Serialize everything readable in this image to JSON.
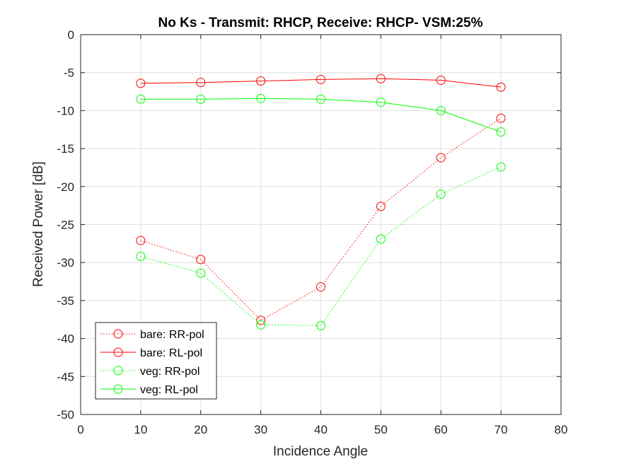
{
  "chart_data": {
    "type": "line",
    "title": "No Ks - Transmit: RHCP, Receive: RHCP- VSM:25%",
    "xlabel": "Incidence Angle",
    "ylabel": "Received Power [dB]",
    "xlim": [
      0,
      80
    ],
    "ylim": [
      -50,
      0
    ],
    "xticks": [
      0,
      10,
      20,
      30,
      40,
      50,
      60,
      70,
      80
    ],
    "yticks": [
      0,
      -5,
      -10,
      -15,
      -20,
      -25,
      -30,
      -35,
      -40,
      -45,
      -50
    ],
    "grid": true,
    "legend_position": "bottom-left",
    "x": [
      10,
      20,
      30,
      40,
      50,
      60,
      70
    ],
    "series": [
      {
        "name": "bare: RR-pol",
        "color": "#ff0000",
        "linestyle": "dotted",
        "marker": "circle",
        "values": [
          -27.1,
          -29.6,
          -37.6,
          -33.2,
          -22.6,
          -16.2,
          -11.0
        ]
      },
      {
        "name": "bare: RL-pol",
        "color": "#ff0000",
        "linestyle": "solid",
        "marker": "circle",
        "values": [
          -6.4,
          -6.3,
          -6.1,
          -5.9,
          -5.8,
          -6.0,
          -6.9
        ]
      },
      {
        "name": "veg: RR-pol",
        "color": "#00ff00",
        "linestyle": "dotted",
        "marker": "circle",
        "values": [
          -29.2,
          -31.4,
          -38.2,
          -38.3,
          -26.9,
          -21.0,
          -17.4
        ]
      },
      {
        "name": "veg: RL-pol",
        "color": "#00ff00",
        "linestyle": "solid",
        "marker": "circle",
        "values": [
          -8.5,
          -8.5,
          -8.4,
          -8.5,
          -8.9,
          -10.0,
          -12.8
        ]
      }
    ]
  }
}
